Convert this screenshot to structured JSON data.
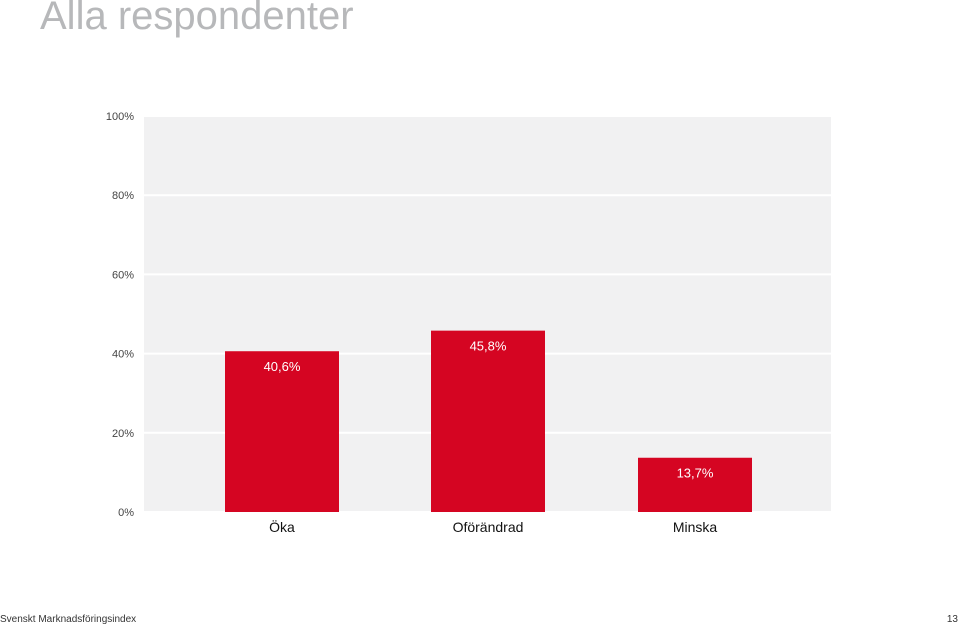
{
  "page": {
    "title": "Alla respondenter",
    "footer_left": "Svenskt Marknadsföringsindex",
    "page_number": "13"
  },
  "colors": {
    "bar": "#d50522",
    "plot_bg": "#f1f1f2",
    "grid": "#ffffff",
    "axis_text": "#444444",
    "category_text": "#111111",
    "bar_label": "#ffffff",
    "title": "#b7b8ba"
  },
  "chart_data": {
    "type": "bar",
    "title": "",
    "xlabel": "",
    "ylabel": "",
    "categories": [
      "Öka",
      "Oförändrad",
      "Minska"
    ],
    "values": [
      40.6,
      45.8,
      13.7
    ],
    "value_labels": [
      "40,6%",
      "45,8%",
      "13,7%"
    ],
    "ylim": [
      0,
      100
    ],
    "yticks": [
      0,
      20,
      40,
      60,
      80,
      100
    ],
    "ytick_labels": [
      "0%",
      "20%",
      "40%",
      "60%",
      "80%",
      "100%"
    ],
    "grid": true,
    "legend": "none"
  }
}
